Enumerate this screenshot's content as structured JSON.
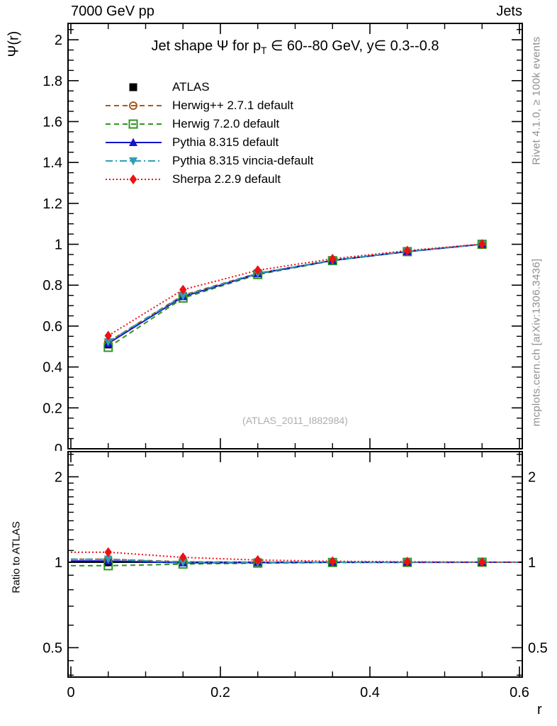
{
  "page": {
    "header_left": "7000 GeV pp",
    "header_right": "Jets",
    "watermark": "(ATLAS_2011_I882984)",
    "side_note_top": "Rivet 4.1.0, ≥ 100k events",
    "side_note_bottom": "mcplots.cern.ch [arXiv:1306.3436]"
  },
  "chart_data": {
    "type": "line",
    "title": "Jet shape Ψ for p_T ∈ 60--80 GeV, y∈ 0.3--0.8",
    "title_parts": {
      "prefix": "Jet shape Ψ for p",
      "sub": "T",
      "suffix": " ∈ 60--80 GeV, y∈ 0.3--0.8"
    },
    "xlabel": "r",
    "ylabel": "Ψ(r)",
    "ratio_ylabel": "Ratio to ATLAS",
    "legend_position": "top-left",
    "grid": false,
    "x": [
      0.05,
      0.15,
      0.25,
      0.35,
      0.45,
      0.55
    ],
    "xlim": [
      0,
      0.6
    ],
    "main_ylim": [
      0,
      2.08
    ],
    "ratio_ylim": [
      0.39,
      2.46
    ],
    "ratio_yscale": "log",
    "x_major_ticks": {
      "values": [
        0,
        0.2,
        0.4,
        0.6
      ],
      "labels": [
        "0",
        "0.2",
        "0.4",
        "0.6"
      ]
    },
    "x_minor_step": 0.05,
    "main_y_major_ticks": {
      "values": [
        0,
        0.2,
        0.4,
        0.6,
        0.8,
        1.0,
        1.2,
        1.4,
        1.6,
        1.8,
        2.0
      ],
      "labels": [
        "0",
        "0.2",
        "0.4",
        "0.6",
        "0.8",
        "1",
        "1.2",
        "1.4",
        "1.6",
        "1.8",
        "2"
      ]
    },
    "main_y_minor_step": 0.05,
    "ratio_y_major_ticks": {
      "values": [
        0.5,
        1,
        2
      ],
      "labels": [
        "0.5",
        "1",
        "2"
      ]
    },
    "ratio_y_minor_ticks": [
      0.4,
      0.45,
      0.6,
      0.7,
      0.8,
      0.9,
      1.1,
      1.2,
      1.3,
      1.4,
      1.5,
      1.6,
      1.7,
      1.8,
      1.9,
      2.2,
      2.4
    ],
    "series": [
      {
        "key": "atlas",
        "name": "ATLAS",
        "color": "#000000",
        "marker": "square-filled",
        "dash": "none",
        "values": [
          0.51,
          0.748,
          0.858,
          0.922,
          0.965,
          1.0
        ],
        "ratio": [
          1.0,
          1.0,
          1.0,
          1.0,
          1.0,
          1.0
        ]
      },
      {
        "key": "herwigpp",
        "name": "Herwig++ 2.7.1 default",
        "color": "#a85b1e",
        "marker": "circle-open",
        "dash": "7 5",
        "values": [
          0.523,
          0.751,
          0.859,
          0.922,
          0.965,
          1.0
        ],
        "ratio": [
          1.025,
          1.004,
          1.001,
          1.0,
          1.0,
          1.0
        ]
      },
      {
        "key": "herwig7",
        "name": "Herwig 7.2.0 default",
        "color": "#2f961e",
        "marker": "square-open",
        "dash": "7 5",
        "values": [
          0.496,
          0.737,
          0.852,
          0.92,
          0.964,
          1.0
        ],
        "ratio": [
          0.972,
          0.985,
          0.993,
          0.998,
          0.999,
          1.0
        ]
      },
      {
        "key": "pythia",
        "name": "Pythia 8.315 default",
        "color": "#1414cc",
        "marker": "triangle-up-filled",
        "dash": "",
        "values": [
          0.515,
          0.744,
          0.856,
          0.921,
          0.964,
          1.0
        ],
        "ratio": [
          1.01,
          0.995,
          0.997,
          0.999,
          0.999,
          1.0
        ]
      },
      {
        "key": "vincia",
        "name": "Pythia 8.315 vincia-default",
        "color": "#2e9eb4",
        "marker": "triangle-down-filled",
        "dash": "10 4 2 4",
        "values": [
          0.523,
          0.748,
          0.858,
          0.922,
          0.965,
          1.0
        ],
        "ratio": [
          1.025,
          1.0,
          1.0,
          1.0,
          1.0,
          1.0
        ]
      },
      {
        "key": "sherpa",
        "name": "Sherpa 2.2.9 default",
        "color": "#ee1111",
        "marker": "diamond-filled",
        "dash": "2 3",
        "values": [
          0.553,
          0.778,
          0.873,
          0.929,
          0.969,
          1.001
        ],
        "ratio": [
          1.085,
          1.04,
          1.018,
          1.008,
          1.004,
          1.001
        ]
      }
    ]
  }
}
